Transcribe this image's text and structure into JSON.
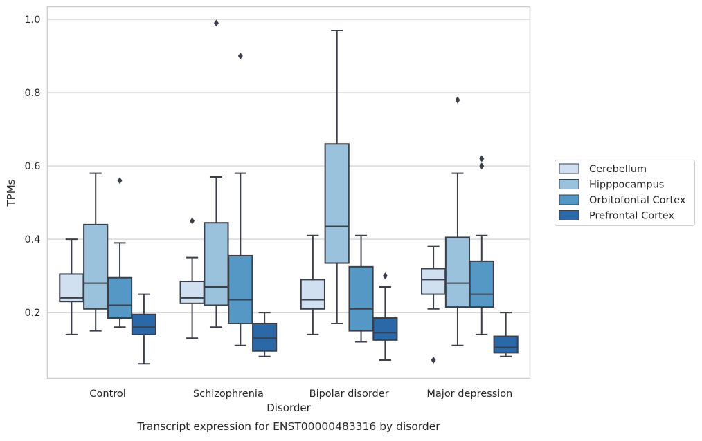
{
  "chart_data": {
    "type": "box",
    "xlabel": "Disorder",
    "ylabel": "TPMs",
    "caption": "Transcript expression for ENST00000483316 by disorder",
    "ylim": [
      0.02,
      1.035
    ],
    "yticks": [
      0.2,
      0.4,
      0.6,
      0.8,
      1.0
    ],
    "ytick_labels": [
      "0.2",
      "0.4",
      "0.6",
      "0.8",
      "1.0"
    ],
    "grid": "horizontal",
    "legend_position": "right",
    "categories": [
      "Control",
      "Schizophrenia",
      "Bipolar disorder",
      "Major depression"
    ],
    "series": [
      {
        "name": "Cerebellum",
        "color": "#d1e0f0",
        "boxes": [
          {
            "whislo": 0.14,
            "q1": 0.23,
            "med": 0.24,
            "q3": 0.305,
            "whishi": 0.4,
            "fliers": []
          },
          {
            "whislo": 0.13,
            "q1": 0.225,
            "med": 0.24,
            "q3": 0.285,
            "whishi": 0.35,
            "fliers": [
              0.45
            ]
          },
          {
            "whislo": 0.14,
            "q1": 0.21,
            "med": 0.235,
            "q3": 0.29,
            "whishi": 0.41,
            "fliers": []
          },
          {
            "whislo": 0.21,
            "q1": 0.25,
            "med": 0.29,
            "q3": 0.32,
            "whishi": 0.38,
            "fliers": [
              0.07
            ]
          }
        ]
      },
      {
        "name": "Hipppocampus",
        "color": "#9ac2dc",
        "boxes": [
          {
            "whislo": 0.15,
            "q1": 0.21,
            "med": 0.28,
            "q3": 0.44,
            "whishi": 0.58,
            "fliers": []
          },
          {
            "whislo": 0.16,
            "q1": 0.22,
            "med": 0.27,
            "q3": 0.445,
            "whishi": 0.57,
            "fliers": [
              0.99
            ]
          },
          {
            "whislo": 0.17,
            "q1": 0.335,
            "med": 0.435,
            "q3": 0.66,
            "whishi": 0.97,
            "fliers": []
          },
          {
            "whislo": 0.11,
            "q1": 0.215,
            "med": 0.28,
            "q3": 0.405,
            "whishi": 0.58,
            "fliers": [
              0.78
            ]
          }
        ]
      },
      {
        "name": "Orbitofontal Cortex",
        "color": "#5597c5",
        "boxes": [
          {
            "whislo": 0.16,
            "q1": 0.185,
            "med": 0.22,
            "q3": 0.295,
            "whishi": 0.39,
            "fliers": [
              0.56
            ]
          },
          {
            "whislo": 0.11,
            "q1": 0.17,
            "med": 0.235,
            "q3": 0.355,
            "whishi": 0.58,
            "fliers": [
              0.9
            ]
          },
          {
            "whislo": 0.12,
            "q1": 0.15,
            "med": 0.21,
            "q3": 0.325,
            "whishi": 0.41,
            "fliers": []
          },
          {
            "whislo": 0.14,
            "q1": 0.215,
            "med": 0.25,
            "q3": 0.34,
            "whishi": 0.41,
            "fliers": [
              0.6,
              0.62
            ]
          }
        ]
      },
      {
        "name": "Prefrontal Cortex",
        "color": "#2a68a8",
        "boxes": [
          {
            "whislo": 0.06,
            "q1": 0.14,
            "med": 0.16,
            "q3": 0.195,
            "whishi": 0.25,
            "fliers": []
          },
          {
            "whislo": 0.08,
            "q1": 0.095,
            "med": 0.13,
            "q3": 0.17,
            "whishi": 0.2,
            "fliers": []
          },
          {
            "whislo": 0.07,
            "q1": 0.125,
            "med": 0.145,
            "q3": 0.185,
            "whishi": 0.27,
            "fliers": [
              0.3
            ]
          },
          {
            "whislo": 0.08,
            "q1": 0.09,
            "med": 0.105,
            "q3": 0.135,
            "whishi": 0.2,
            "fliers": []
          }
        ]
      }
    ],
    "style": {
      "line_color": "#3a3f4a",
      "grid_color": "#cccccc",
      "frame_color": "#cccccc",
      "background": "#ffffff"
    }
  }
}
